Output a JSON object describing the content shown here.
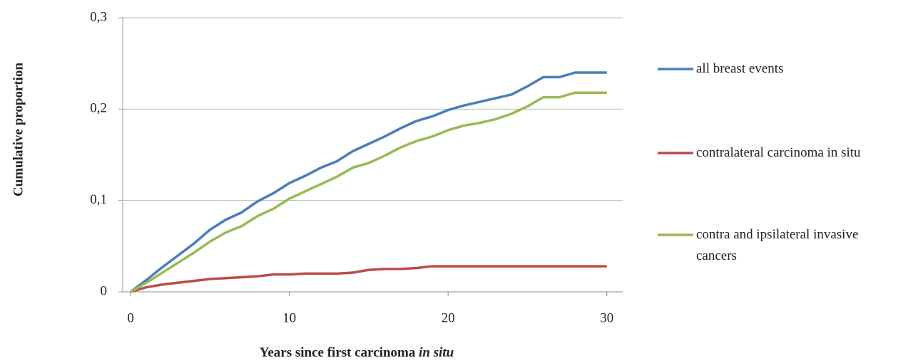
{
  "chart_data": {
    "type": "line",
    "x_label": {
      "text": "Years since first carcinoma",
      "italic": "in situ"
    },
    "y_label": "Cumulative   proportion",
    "x": [
      0,
      1,
      2,
      3,
      4,
      5,
      6,
      7,
      8,
      9,
      10,
      11,
      12,
      13,
      14,
      15,
      16,
      17,
      18,
      19,
      20,
      21,
      22,
      23,
      24,
      25,
      26,
      27,
      28,
      29,
      30
    ],
    "series": [
      {
        "name": "all breast events",
        "color": "#4a7ebb",
        "values": [
          0,
          0.013,
          0.027,
          0.04,
          0.053,
          0.068,
          0.079,
          0.087,
          0.099,
          0.108,
          0.119,
          0.127,
          0.136,
          0.143,
          0.154,
          0.162,
          0.17,
          0.179,
          0.187,
          0.192,
          0.199,
          0.204,
          0.208,
          0.212,
          0.216,
          0.225,
          0.235,
          0.235,
          0.24,
          0.24,
          0.24
        ]
      },
      {
        "name": "contralateral carcinoma in situ",
        "color": "#be4b48",
        "values": [
          0,
          0.005,
          0.008,
          0.01,
          0.012,
          0.014,
          0.015,
          0.016,
          0.017,
          0.019,
          0.019,
          0.02,
          0.02,
          0.02,
          0.021,
          0.024,
          0.025,
          0.025,
          0.026,
          0.028,
          0.028,
          0.028,
          0.028,
          0.028,
          0.028,
          0.028,
          0.028,
          0.028,
          0.028,
          0.028,
          0.028
        ]
      },
      {
        "name": "contra and ipsilateral invasive cancers",
        "color": "#98b954",
        "values": [
          0,
          0.01,
          0.021,
          0.032,
          0.043,
          0.055,
          0.065,
          0.072,
          0.083,
          0.091,
          0.102,
          0.11,
          0.118,
          0.126,
          0.136,
          0.141,
          0.149,
          0.158,
          0.165,
          0.17,
          0.177,
          0.182,
          0.185,
          0.189,
          0.195,
          0.203,
          0.213,
          0.213,
          0.218,
          0.218,
          0.218
        ]
      }
    ],
    "xlim": [
      -0.5,
      31
    ],
    "ylim": [
      0,
      0.3
    ],
    "xticks": [
      0,
      10,
      20,
      30
    ],
    "yticks": [
      0,
      {
        "value": 0.1,
        "label": "0,1"
      },
      {
        "value": 0.2,
        "label": "0,2"
      },
      {
        "value": 0.3,
        "label": "0,3"
      }
    ],
    "grid": true,
    "legend": "right"
  }
}
